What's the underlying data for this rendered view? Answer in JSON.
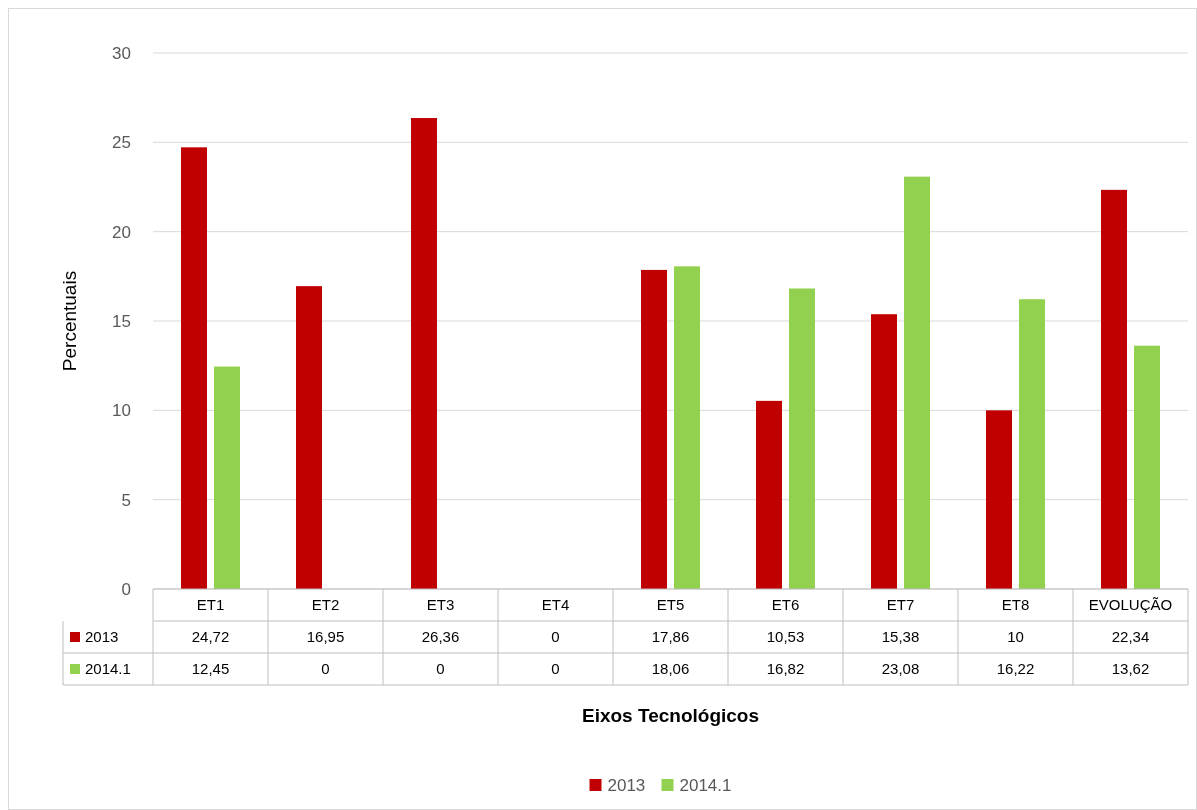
{
  "chart_data": {
    "type": "bar",
    "xlabel": "Eixos Tecnológicos",
    "ylabel": "Percentuais",
    "categories": [
      "ET1",
      "ET2",
      "ET3",
      "ET4",
      "ET5",
      "ET6",
      "ET7",
      "ET8",
      "EVOLUÇÃO"
    ],
    "series": [
      {
        "name": "2013",
        "color": "#c00000",
        "values": [
          24.72,
          16.95,
          26.36,
          0,
          17.86,
          10.53,
          15.38,
          10,
          22.34
        ],
        "value_labels": [
          "24,72",
          "16,95",
          "26,36",
          "0",
          "17,86",
          "10,53",
          "15,38",
          "10",
          "22,34"
        ]
      },
      {
        "name": "2014.1",
        "color": "#92d050",
        "values": [
          12.45,
          0,
          0,
          0,
          18.06,
          16.82,
          23.08,
          16.22,
          13.62
        ],
        "value_labels": [
          "12,45",
          "0",
          "0",
          "0",
          "18,06",
          "16,82",
          "23,08",
          "16,22",
          "13,62"
        ]
      }
    ],
    "ylim": [
      0,
      30
    ],
    "yticks": [
      0,
      5,
      10,
      15,
      20,
      25,
      30
    ],
    "grid": "y",
    "legend": "bottom"
  }
}
